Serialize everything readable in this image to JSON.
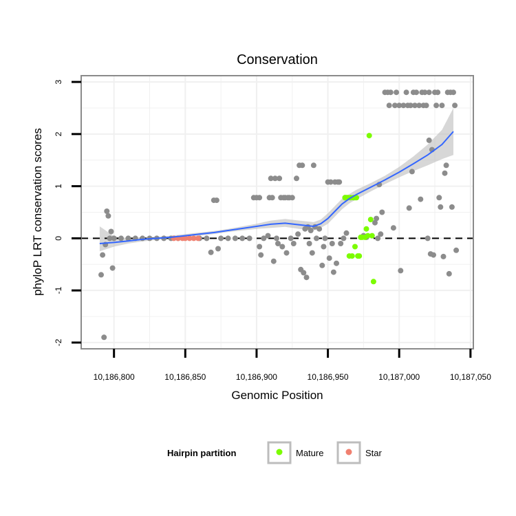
{
  "chart_data": {
    "type": "scatter",
    "title": "Conservation",
    "xlabel": "Genomic Position",
    "ylabel": "phyloP LRT conservation scores",
    "xlim": [
      10186777,
      10187052
    ],
    "ylim": [
      -2.12,
      3.12
    ],
    "x_ticks": [
      10186800,
      10186850,
      10186900,
      10186950,
      10187000,
      10187050
    ],
    "x_tick_labels": [
      "10,186,800",
      "10,186,850",
      "10,186,900",
      "10,186,950",
      "10,187,000",
      "10,187,050"
    ],
    "y_ticks": [
      -2,
      -1,
      0,
      1,
      2,
      3
    ],
    "y_tick_labels": [
      "-2",
      "-1",
      "0",
      "1",
      "2",
      "3"
    ],
    "reference_line": {
      "y": 0,
      "style": "dashed"
    },
    "legend": {
      "title": "Hairpin partition",
      "placement": "bottom",
      "entries": [
        {
          "label": "Mature",
          "color": "#7CFC00"
        },
        {
          "label": "Star",
          "color": "#F08070"
        }
      ]
    },
    "colors": {
      "points": "#8c8c8c",
      "mature": "#7CFC00",
      "star": "#F08070",
      "smooth": "#3366FF",
      "ribbon": "#bdbdbd"
    },
    "series": [
      {
        "name": "Other",
        "points": [
          [
            10186791,
            -0.7
          ],
          [
            10186792,
            -0.32
          ],
          [
            10186793,
            -1.9
          ],
          [
            10186794,
            -0.12
          ],
          [
            10186795,
            0.52
          ],
          [
            10186796,
            0.43
          ],
          [
            10186797,
            0.0
          ],
          [
            10186798,
            0.13
          ],
          [
            10186799,
            -0.57
          ],
          [
            10186800,
            0.0
          ],
          [
            10186805,
            0.0
          ],
          [
            10186810,
            0.0
          ],
          [
            10186815,
            0.0
          ],
          [
            10186820,
            0.0
          ],
          [
            10186825,
            0.0
          ],
          [
            10186830,
            0.0
          ],
          [
            10186835,
            0.0
          ],
          [
            10186840,
            0.0
          ],
          [
            10186845,
            0.0
          ],
          [
            10186860,
            0.0
          ],
          [
            10186865,
            0.0
          ],
          [
            10186868,
            -0.27
          ],
          [
            10186870,
            0.73
          ],
          [
            10186872,
            0.73
          ],
          [
            10186873,
            -0.2
          ],
          [
            10186875,
            0.0
          ],
          [
            10186880,
            0.0
          ],
          [
            10186885,
            0.0
          ],
          [
            10186890,
            0.0
          ],
          [
            10186895,
            0.0
          ],
          [
            10186898,
            0.78
          ],
          [
            10186900,
            0.78
          ],
          [
            10186902,
            0.78
          ],
          [
            10186902,
            -0.16
          ],
          [
            10186903,
            -0.32
          ],
          [
            10186905,
            0.0
          ],
          [
            10186908,
            0.05
          ],
          [
            10186909,
            0.78
          ],
          [
            10186910,
            1.15
          ],
          [
            10186911,
            0.78
          ],
          [
            10186912,
            -0.44
          ],
          [
            10186913,
            1.15
          ],
          [
            10186914,
            0.0
          ],
          [
            10186915,
            -0.1
          ],
          [
            10186916,
            1.15
          ],
          [
            10186917,
            0.78
          ],
          [
            10186918,
            -0.16
          ],
          [
            10186919,
            0.78
          ],
          [
            10186920,
            0.78
          ],
          [
            10186921,
            -0.28
          ],
          [
            10186922,
            0.78
          ],
          [
            10186923,
            0.78
          ],
          [
            10186924,
            0.0
          ],
          [
            10186925,
            0.78
          ],
          [
            10186926,
            -0.1
          ],
          [
            10186928,
            1.15
          ],
          [
            10186929,
            0.08
          ],
          [
            10186930,
            1.4
          ],
          [
            10186931,
            -0.6
          ],
          [
            10186932,
            1.4
          ],
          [
            10186933,
            -0.66
          ],
          [
            10186934,
            0.18
          ],
          [
            10186935,
            -0.75
          ],
          [
            10186936,
            0.22
          ],
          [
            10186937,
            -0.1
          ],
          [
            10186938,
            0.15
          ],
          [
            10186939,
            -0.28
          ],
          [
            10186940,
            1.4
          ],
          [
            10186941,
            0.22
          ],
          [
            10186942,
            0.0
          ],
          [
            10186944,
            0.18
          ],
          [
            10186946,
            -0.52
          ],
          [
            10186947,
            -0.16
          ],
          [
            10186948,
            0.0
          ],
          [
            10186950,
            1.08
          ],
          [
            10186951,
            -0.38
          ],
          [
            10186952,
            1.08
          ],
          [
            10186953,
            -0.1
          ],
          [
            10186954,
            -0.65
          ],
          [
            10186955,
            1.08
          ],
          [
            10186956,
            -0.48
          ],
          [
            10186957,
            1.08
          ],
          [
            10186958,
            1.08
          ],
          [
            10186959,
            -0.1
          ],
          [
            10186961,
            0.0
          ],
          [
            10186962,
            0.78
          ],
          [
            10186963,
            0.1
          ],
          [
            10186975,
            0.05
          ],
          [
            10186977,
            0.02
          ],
          [
            10186983,
            0.3
          ],
          [
            10186984,
            0.38
          ],
          [
            10186985,
            0.0
          ],
          [
            10186986,
            1.03
          ],
          [
            10186987,
            0.08
          ],
          [
            10186988,
            0.5
          ],
          [
            10186990,
            2.8
          ],
          [
            10186992,
            2.8
          ],
          [
            10186993,
            2.55
          ],
          [
            10186994,
            2.8
          ],
          [
            10186996,
            0.2
          ],
          [
            10186997,
            2.55
          ],
          [
            10186998,
            2.8
          ],
          [
            10187000,
            2.55
          ],
          [
            10187001,
            -0.62
          ],
          [
            10187003,
            2.55
          ],
          [
            10187005,
            2.8
          ],
          [
            10187006,
            2.55
          ],
          [
            10187007,
            0.58
          ],
          [
            10187008,
            2.55
          ],
          [
            10187009,
            1.28
          ],
          [
            10187010,
            2.8
          ],
          [
            10187011,
            2.55
          ],
          [
            10187012,
            2.8
          ],
          [
            10187014,
            2.55
          ],
          [
            10187015,
            0.75
          ],
          [
            10187016,
            2.8
          ],
          [
            10187017,
            2.55
          ],
          [
            10187018,
            2.8
          ],
          [
            10187019,
            2.55
          ],
          [
            10187020,
            0.0
          ],
          [
            10187021,
            2.8
          ],
          [
            10187021,
            1.88
          ],
          [
            10187022,
            -0.3
          ],
          [
            10187023,
            1.7
          ],
          [
            10187024,
            -0.32
          ],
          [
            10187025,
            2.8
          ],
          [
            10187026,
            2.55
          ],
          [
            10187027,
            2.8
          ],
          [
            10187028,
            0.78
          ],
          [
            10187029,
            0.6
          ],
          [
            10187030,
            2.55
          ],
          [
            10187031,
            -0.35
          ],
          [
            10187032,
            1.25
          ],
          [
            10187033,
            1.4
          ],
          [
            10187034,
            2.8
          ],
          [
            10187035,
            -0.68
          ],
          [
            10187036,
            2.8
          ],
          [
            10187037,
            0.6
          ],
          [
            10187038,
            2.8
          ],
          [
            10187039,
            2.55
          ],
          [
            10187040,
            -0.23
          ]
        ]
      },
      {
        "name": "Mature",
        "points": [
          [
            10186962,
            0.78
          ],
          [
            10186963,
            0.78
          ],
          [
            10186964,
            0.78
          ],
          [
            10186965,
            -0.34
          ],
          [
            10186966,
            0.78
          ],
          [
            10186967,
            -0.34
          ],
          [
            10186968,
            0.78
          ],
          [
            10186969,
            0.78
          ],
          [
            10186969,
            -0.16
          ],
          [
            10186970,
            0.78
          ],
          [
            10186971,
            -0.34
          ],
          [
            10186972,
            -0.34
          ],
          [
            10186973,
            0.02
          ],
          [
            10186974,
            0.02
          ],
          [
            10186976,
            0.02
          ],
          [
            10186977,
            0.18
          ],
          [
            10186978,
            0.05
          ],
          [
            10186979,
            1.97
          ],
          [
            10186980,
            0.36
          ],
          [
            10186981,
            0.05
          ],
          [
            10186982,
            -0.83
          ]
        ]
      },
      {
        "name": "Star",
        "points": [
          [
            10186842,
            0.0
          ],
          [
            10186845,
            0.0
          ],
          [
            10186848,
            0.0
          ],
          [
            10186850,
            0.0
          ],
          [
            10186853,
            0.0
          ],
          [
            10186856,
            0.0
          ],
          [
            10186859,
            0.0
          ]
        ]
      }
    ],
    "smooth": {
      "x": [
        10186790,
        10186800,
        10186810,
        10186820,
        10186830,
        10186840,
        10186850,
        10186860,
        10186870,
        10186880,
        10186890,
        10186900,
        10186910,
        10186920,
        10186930,
        10186940,
        10186945,
        10186950,
        10186955,
        10186960,
        10186965,
        10186970,
        10186980,
        10186990,
        10187000,
        10187010,
        10187020,
        10187030,
        10187038
      ],
      "y": [
        -0.1,
        -0.08,
        -0.05,
        -0.02,
        0.0,
        0.02,
        0.05,
        0.08,
        0.11,
        0.15,
        0.19,
        0.23,
        0.27,
        0.29,
        0.26,
        0.23,
        0.28,
        0.38,
        0.52,
        0.66,
        0.76,
        0.84,
        0.98,
        1.12,
        1.27,
        1.43,
        1.6,
        1.8,
        2.05
      ],
      "lower": [
        -0.25,
        -0.16,
        -0.1,
        -0.06,
        -0.03,
        -0.01,
        0.02,
        0.05,
        0.08,
        0.12,
        0.15,
        0.18,
        0.2,
        0.22,
        0.18,
        0.15,
        0.2,
        0.28,
        0.42,
        0.56,
        0.67,
        0.75,
        0.9,
        1.04,
        1.17,
        1.29,
        1.4,
        1.52,
        1.6
      ],
      "upper": [
        0.23,
        0.04,
        0.0,
        0.02,
        0.03,
        0.05,
        0.08,
        0.11,
        0.14,
        0.18,
        0.23,
        0.28,
        0.34,
        0.37,
        0.34,
        0.31,
        0.36,
        0.48,
        0.62,
        0.76,
        0.85,
        0.93,
        1.06,
        1.2,
        1.37,
        1.57,
        1.8,
        2.08,
        2.5
      ]
    }
  }
}
